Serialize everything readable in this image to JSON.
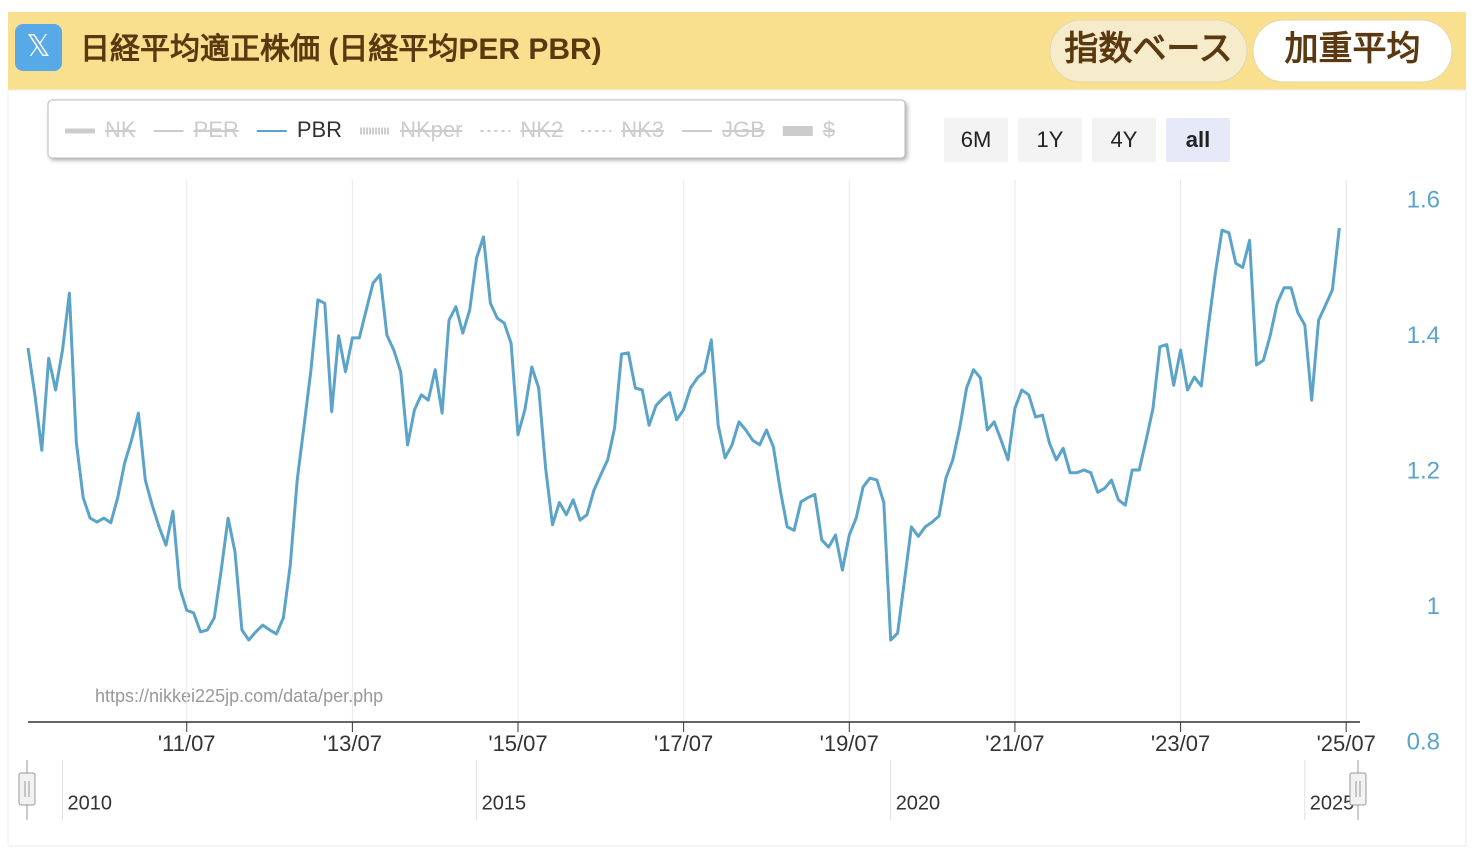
{
  "header": {
    "icon": "𝕏",
    "title": "日経平均適正株価 (日経平均PER PBR)",
    "buttons": [
      "指数ベース",
      "加重平均"
    ]
  },
  "range_selector": {
    "buttons": [
      "6M",
      "1Y",
      "4Y",
      "all"
    ],
    "selected": 3
  },
  "credit": "https://nikkei225jp.com/data/per.php",
  "chart_data": {
    "type": "line",
    "x": [
      "2009-08",
      "2009-09",
      "2009-10",
      "2009-11",
      "2009-12",
      "2010-01",
      "2010-02",
      "2010-03",
      "2010-04",
      "2010-05",
      "2010-06",
      "2010-07",
      "2010-08",
      "2010-09",
      "2010-10",
      "2010-11",
      "2010-12",
      "2011-01",
      "2011-02",
      "2011-03",
      "2011-04",
      "2011-05",
      "2011-06",
      "2011-07",
      "2011-08",
      "2011-09",
      "2011-10",
      "2011-11",
      "2011-12",
      "2012-01",
      "2012-02",
      "2012-03",
      "2012-04",
      "2012-05",
      "2012-06",
      "2012-07",
      "2012-08",
      "2012-09",
      "2012-10",
      "2012-11",
      "2012-12",
      "2013-01",
      "2013-02",
      "2013-03",
      "2013-04",
      "2013-05",
      "2013-06",
      "2013-07",
      "2013-08",
      "2013-09",
      "2013-10",
      "2013-11",
      "2013-12",
      "2014-01",
      "2014-02",
      "2014-03",
      "2014-04",
      "2014-05",
      "2014-06",
      "2014-07",
      "2014-08",
      "2014-09",
      "2014-10",
      "2014-11",
      "2014-12",
      "2015-01",
      "2015-02",
      "2015-03",
      "2015-04",
      "2015-05",
      "2015-06",
      "2015-07",
      "2015-08",
      "2015-09",
      "2015-10",
      "2015-11",
      "2015-12",
      "2016-01",
      "2016-02",
      "2016-03",
      "2016-04",
      "2016-05",
      "2016-06",
      "2016-07",
      "2016-08",
      "2016-09",
      "2016-10",
      "2016-11",
      "2016-12",
      "2017-01",
      "2017-02",
      "2017-03",
      "2017-04",
      "2017-05",
      "2017-06",
      "2017-07",
      "2017-08",
      "2017-09",
      "2017-10",
      "2017-11",
      "2017-12",
      "2018-01",
      "2018-02",
      "2018-03",
      "2018-04",
      "2018-05",
      "2018-06",
      "2018-07",
      "2018-08",
      "2018-09",
      "2018-10",
      "2018-11",
      "2018-12",
      "2019-01",
      "2019-02",
      "2019-03",
      "2019-04",
      "2019-05",
      "2019-06",
      "2019-07",
      "2019-08",
      "2019-09",
      "2019-10",
      "2019-11",
      "2019-12",
      "2020-01",
      "2020-02",
      "2020-03",
      "2020-04",
      "2020-05",
      "2020-06",
      "2020-07",
      "2020-08",
      "2020-09",
      "2020-10",
      "2020-11",
      "2020-12",
      "2021-01",
      "2021-02",
      "2021-03",
      "2021-04",
      "2021-05",
      "2021-06",
      "2021-07",
      "2021-08",
      "2021-09",
      "2021-10",
      "2021-11",
      "2021-12",
      "2022-01",
      "2022-02",
      "2022-03",
      "2022-04",
      "2022-05",
      "2022-06",
      "2022-07",
      "2022-08",
      "2022-09",
      "2022-10",
      "2022-11",
      "2022-12",
      "2023-01",
      "2023-02",
      "2023-03",
      "2023-04",
      "2023-05",
      "2023-06",
      "2023-07",
      "2023-08",
      "2023-09",
      "2023-10",
      "2023-11",
      "2023-12",
      "2024-01",
      "2024-02",
      "2024-03",
      "2024-04",
      "2024-05",
      "2024-06",
      "2024-07",
      "2024-08",
      "2024-09",
      "2024-10",
      "2024-11",
      "2024-12",
      "2025-01",
      "2025-02",
      "2025-03",
      "2025-04",
      "2025-05",
      "2025-06"
    ],
    "series": [
      {
        "name": "NK",
        "visible": false,
        "style": "thick",
        "color": "#cccccc"
      },
      {
        "name": "PER",
        "visible": false,
        "style": "solid",
        "color": "#cccccc"
      },
      {
        "name": "PBR",
        "visible": true,
        "style": "solid",
        "color": "#5ba3c9",
        "values": [
          1.383,
          1.314,
          1.232,
          1.368,
          1.321,
          1.38,
          1.464,
          1.244,
          1.162,
          1.132,
          1.126,
          1.132,
          1.125,
          1.162,
          1.213,
          1.247,
          1.287,
          1.188,
          1.151,
          1.119,
          1.092,
          1.142,
          1.029,
          0.996,
          0.992,
          0.964,
          0.967,
          0.985,
          1.055,
          1.132,
          1.082,
          0.967,
          0.952,
          0.964,
          0.974,
          0.967,
          0.961,
          0.985,
          1.063,
          1.188,
          1.269,
          1.351,
          1.454,
          1.449,
          1.289,
          1.401,
          1.348,
          1.398,
          1.398,
          1.439,
          1.479,
          1.491,
          1.402,
          1.38,
          1.348,
          1.24,
          1.292,
          1.314,
          1.306,
          1.351,
          1.287,
          1.424,
          1.444,
          1.405,
          1.439,
          1.516,
          1.547,
          1.449,
          1.427,
          1.42,
          1.39,
          1.255,
          1.292,
          1.355,
          1.324,
          1.206,
          1.122,
          1.155,
          1.137,
          1.159,
          1.129,
          1.137,
          1.173,
          1.196,
          1.218,
          1.265,
          1.374,
          1.376,
          1.324,
          1.321,
          1.269,
          1.298,
          1.309,
          1.317,
          1.277,
          1.292,
          1.324,
          1.339,
          1.348,
          1.395,
          1.269,
          1.221,
          1.24,
          1.274,
          1.262,
          1.247,
          1.24,
          1.262,
          1.237,
          1.173,
          1.119,
          1.114,
          1.156,
          1.162,
          1.167,
          1.1,
          1.089,
          1.107,
          1.055,
          1.107,
          1.132,
          1.178,
          1.191,
          1.188,
          1.155,
          0.952,
          0.962,
          1.04,
          1.119,
          1.105,
          1.119,
          1.126,
          1.135,
          1.191,
          1.218,
          1.265,
          1.324,
          1.351,
          1.339,
          1.262,
          1.274,
          1.247,
          1.218,
          1.294,
          1.321,
          1.314,
          1.281,
          1.284,
          1.243,
          1.218,
          1.235,
          1.199,
          1.199,
          1.203,
          1.199,
          1.17,
          1.176,
          1.188,
          1.159,
          1.151,
          1.203,
          1.203,
          1.247,
          1.294,
          1.385,
          1.388,
          1.328,
          1.38,
          1.321,
          1.34,
          1.327,
          1.413,
          1.491,
          1.557,
          1.553,
          1.508,
          1.502,
          1.542,
          1.358,
          1.365,
          1.402,
          1.449,
          1.472,
          1.472,
          1.435,
          1.417,
          1.306,
          1.424,
          1.446,
          1.469,
          1.56
        ]
      },
      {
        "name": "NKper",
        "visible": false,
        "style": "hatch",
        "color": "#cccccc"
      },
      {
        "name": "NK2",
        "visible": false,
        "style": "dot",
        "color": "#cccccc"
      },
      {
        "name": "NK3",
        "visible": false,
        "style": "dot",
        "color": "#cccccc"
      },
      {
        "name": "JGB",
        "visible": false,
        "style": "solid",
        "color": "#cccccc"
      },
      {
        "name": "$",
        "visible": false,
        "style": "bar",
        "color": "#cccccc"
      }
    ],
    "xlim": [
      "2009-08",
      "2025-09"
    ],
    "xticks": [
      {
        "value": "2011-07",
        "label": "'11/07"
      },
      {
        "value": "2013-07",
        "label": "'13/07"
      },
      {
        "value": "2015-07",
        "label": "'15/07"
      },
      {
        "value": "2017-07",
        "label": "'17/07"
      },
      {
        "value": "2019-07",
        "label": "'19/07"
      },
      {
        "value": "2021-07",
        "label": "'21/07"
      },
      {
        "value": "2023-07",
        "label": "'23/07"
      },
      {
        "value": "2025-07",
        "label": "'25/07"
      }
    ],
    "ylim": [
      0.8,
      1.6
    ],
    "yticks": [
      0.8,
      1,
      1.2,
      1.4,
      1.6
    ],
    "y_axis_side": "right",
    "grid": "x",
    "navigator_ticks": [
      {
        "value": "2010-01",
        "label": "2010"
      },
      {
        "value": "2015-01",
        "label": "2015"
      },
      {
        "value": "2020-01",
        "label": "2020"
      },
      {
        "value": "2025-01",
        "label": "2025"
      }
    ]
  }
}
